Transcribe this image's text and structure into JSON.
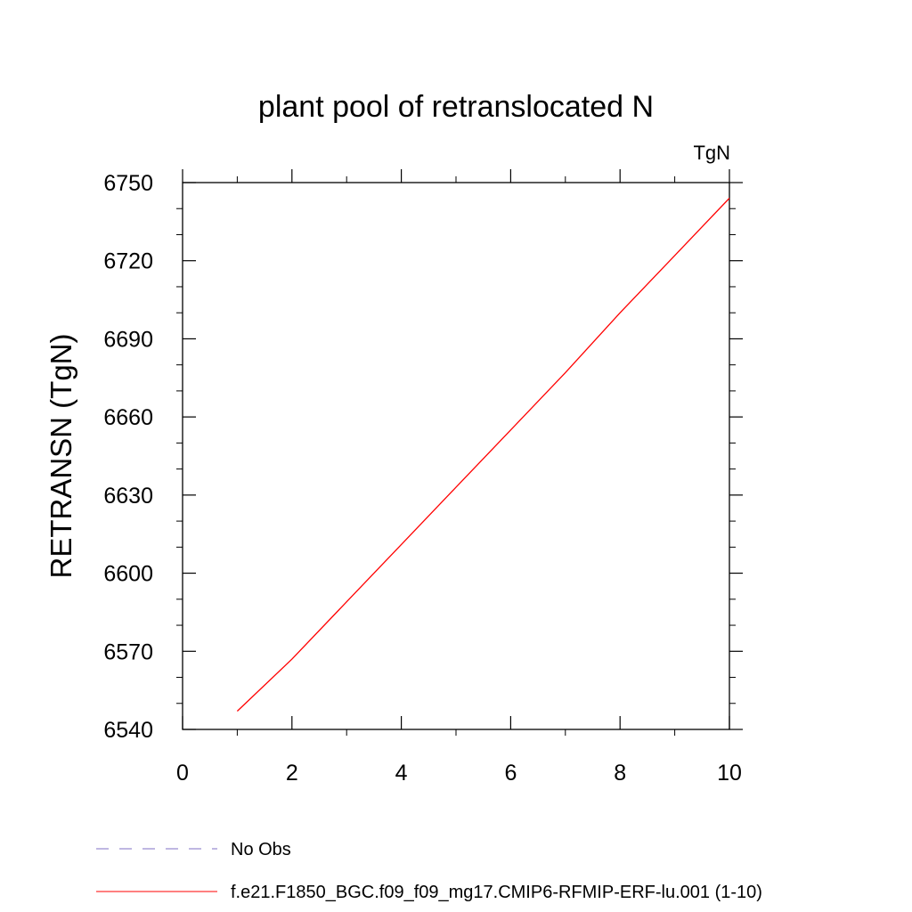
{
  "chart_data": {
    "type": "line",
    "title": "plant pool of retranslocated N",
    "units_label": "TgN",
    "ylabel": "RETRANSN  (TgN)",
    "xlabel": "",
    "xlim": [
      0,
      10
    ],
    "ylim": [
      6540,
      6750
    ],
    "x_ticks": [
      0,
      2,
      4,
      6,
      8,
      10
    ],
    "y_ticks": [
      6540,
      6570,
      6600,
      6630,
      6660,
      6690,
      6720,
      6750
    ],
    "grid": false,
    "series": [
      {
        "name": "No Obs",
        "color": "#7f6fc4",
        "dash": "dashed",
        "x": [],
        "y": []
      },
      {
        "name": "f.e21.F1850_BGC.f09_f09_mg17.CMIP6-RFMIP-ERF-lu.001 (1-10)",
        "color": "#ff0000",
        "dash": "solid",
        "x": [
          1,
          2,
          3,
          4,
          5,
          6,
          7,
          8,
          9,
          10
        ],
        "y": [
          6547,
          6567,
          6589,
          6611,
          6633,
          6655,
          6677,
          6700,
          6722,
          6744
        ]
      }
    ],
    "legend_position": "bottom-left"
  }
}
